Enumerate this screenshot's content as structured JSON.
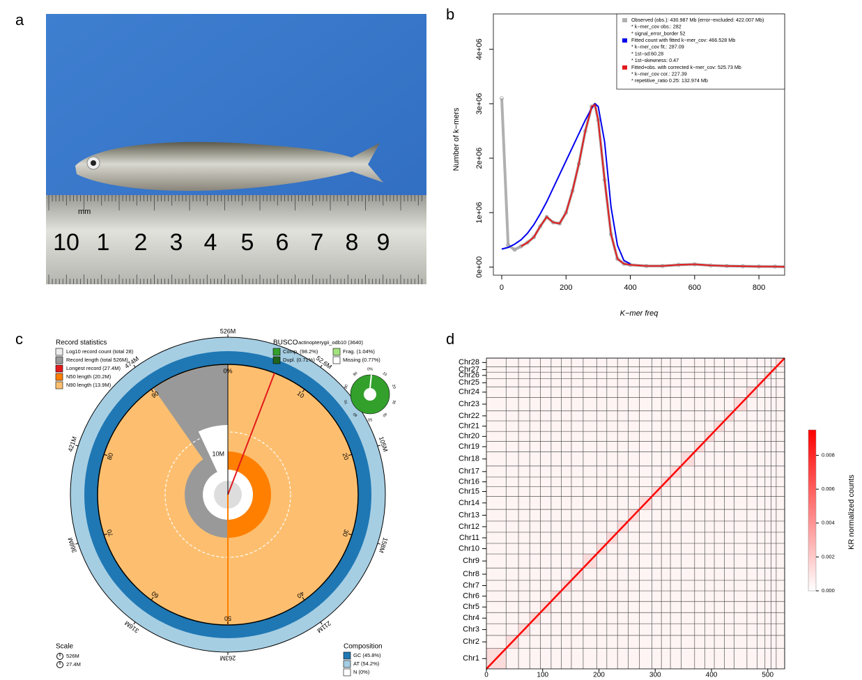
{
  "panel_labels": [
    "a",
    "b",
    "c",
    "d"
  ],
  "photo": {
    "ruler_numbers": [
      "10",
      "1",
      "2",
      "3",
      "4",
      "5",
      "6",
      "7",
      "8",
      "9"
    ],
    "ruler_unit": "mm"
  },
  "chart_data": [
    {
      "type": "line",
      "x_label": "K−mer freq",
      "y_label": "Number of k−mers",
      "xlim": [
        -26,
        880
      ],
      "xticks": [
        0,
        200,
        400,
        600,
        800
      ],
      "ylim": [
        -150000,
        4650000
      ],
      "yticks": [
        {
          "value": 0,
          "label": "0e+00"
        },
        {
          "value": 1000000,
          "label": "1e+06"
        },
        {
          "value": 2000000,
          "label": "2e+06"
        },
        {
          "value": 3000000,
          "label": "3e+06"
        },
        {
          "value": 4000000,
          "label": "4e+06"
        }
      ],
      "x": [
        0,
        20,
        40,
        60,
        80,
        100,
        120,
        140,
        160,
        180,
        200,
        220,
        240,
        260,
        280,
        290,
        300,
        320,
        340,
        360,
        380,
        400,
        450,
        500,
        550,
        600,
        650,
        700,
        750,
        800,
        850,
        880
      ],
      "series": [
        {
          "name": "Observed (obs.): 430.987 Mb (error−excluded: 422.007 Mb)",
          "color": "#b0b0b0",
          "details": [
            "* k−mer_cov obs.: 282",
            "* signal_error_border 52"
          ],
          "values": [
            3100000,
            400000,
            320000,
            380000,
            450000,
            550000,
            750000,
            920000,
            820000,
            800000,
            1000000,
            1400000,
            1900000,
            2500000,
            2950000,
            2980000,
            2700000,
            1600000,
            600000,
            150000,
            60000,
            40000,
            20000,
            20000,
            40000,
            50000,
            30000,
            20000,
            15000,
            10000,
            8000,
            5000
          ]
        },
        {
          "name": "Fitted count with fitted k−mer_cov: 466.528 Mb",
          "color": "#0000ee",
          "details": [
            "* k−mer_cov fit.: 287.09",
            "* 1st−sd:60.28",
            "* 1st−skewness: 0.47"
          ],
          "values": [
            330000,
            360000,
            420000,
            500000,
            620000,
            780000,
            980000,
            1200000,
            1450000,
            1700000,
            1950000,
            2200000,
            2450000,
            2700000,
            2920000,
            3000000,
            2950000,
            2300000,
            1100000,
            400000,
            120000,
            60000,
            null,
            null,
            null,
            null,
            null,
            null,
            null,
            null,
            null,
            null
          ]
        },
        {
          "name": "Fitted+obs. with corrected k−mer_cov: 525.73 Mb",
          "color": "#e31a1c",
          "details": [
            "* k−mer_cov cor.: 227.39",
            "* repetitive_ratio 0.25: 132.974 Mb"
          ],
          "values": [
            null,
            null,
            null,
            380000,
            450000,
            550000,
            750000,
            920000,
            820000,
            800000,
            1000000,
            1400000,
            1900000,
            2500000,
            2950000,
            2980000,
            2700000,
            1600000,
            600000,
            150000,
            60000,
            40000,
            20000,
            20000,
            40000,
            50000,
            30000,
            20000,
            15000,
            10000,
            8000,
            5000
          ]
        }
      ]
    },
    {
      "type": "heatmap",
      "colorbar_label": "KR normalized counts",
      "categories": [
        "Chr1",
        "Chr2",
        "Chr3",
        "Chr4",
        "Chr5",
        "Chr6",
        "Chr7",
        "Chr8",
        "Chr9",
        "Chr10",
        "Chr11",
        "Chr12",
        "Chr13",
        "Chr14",
        "Chr15",
        "Chr16",
        "Chr17",
        "Chr18",
        "Chr19",
        "Chr20",
        "Chr21",
        "Chr22",
        "Chr23",
        "Chr24",
        "Chr25",
        "Chr26",
        "Chr27",
        "Chr28"
      ],
      "boundaries": [
        35,
        57,
        77,
        96,
        115,
        133,
        151,
        172,
        196,
        214,
        233,
        252,
        272,
        294,
        311,
        327,
        346,
        370,
        388,
        405,
        423,
        440,
        463,
        481,
        495,
        506,
        515,
        530
      ],
      "xlim": [
        0,
        530
      ],
      "xticks": [
        0,
        100,
        200,
        300,
        400,
        500
      ],
      "clim": [
        0,
        0.0095
      ],
      "cticks": [
        {
          "value": 0,
          "label": "0.000"
        },
        0.002,
        0.004,
        0.006,
        0.008
      ],
      "colors": [
        "#ffffff",
        "#ff0000"
      ]
    }
  ],
  "snail": {
    "record_title": "Record statistics",
    "record_items": [
      {
        "label": "Log10 record count (total 28)",
        "color": "#ececec"
      },
      {
        "label": "Record length (total 526M)",
        "color": "#999999"
      },
      {
        "label": "Longest record (27.4M)",
        "color": "#e31a1c"
      },
      {
        "label": "N50 length (20.2M)",
        "color": "#ff7f00"
      },
      {
        "label": "N90 length (13.9M)",
        "color": "#fdbf6f"
      }
    ],
    "busco_title": "BUSCO",
    "busco_lineage": "actinopterygii_odb10 (3640)",
    "busco_items": [
      {
        "label": "Comp. (98.2%)",
        "color": "#33a02c"
      },
      {
        "label": "Frag. (1.04%)",
        "color": "#a3e27f"
      },
      {
        "label": "Dupl. (0.71%)",
        "color": "#20641c"
      },
      {
        "label": "Missing (0.77%)",
        "color": "#ffffff"
      }
    ],
    "busco_ticks": [
      "0%",
      "10",
      "20",
      "30",
      "40",
      "50",
      "60",
      "70",
      "80",
      "90"
    ],
    "outer_ticks": [
      "526M",
      "52.6M",
      "105M",
      "158M",
      "211M",
      "263M",
      "316M",
      "368M",
      "421M",
      "474M"
    ],
    "percent_ticks": [
      "0%",
      "10",
      "20",
      "30",
      "40",
      "50",
      "60",
      "70",
      "80",
      "90"
    ],
    "radius_label": "10M",
    "scale_title": "Scale",
    "scale_items": [
      "526M",
      "27.4M"
    ],
    "composition_title": "Composition",
    "composition_items": [
      {
        "label": "GC (45.8%)",
        "color": "#1f78b4"
      },
      {
        "label": "AT (54.2%)",
        "color": "#a6cee3"
      },
      {
        "label": "N (0%)",
        "color": "#ffffff"
      }
    ]
  }
}
